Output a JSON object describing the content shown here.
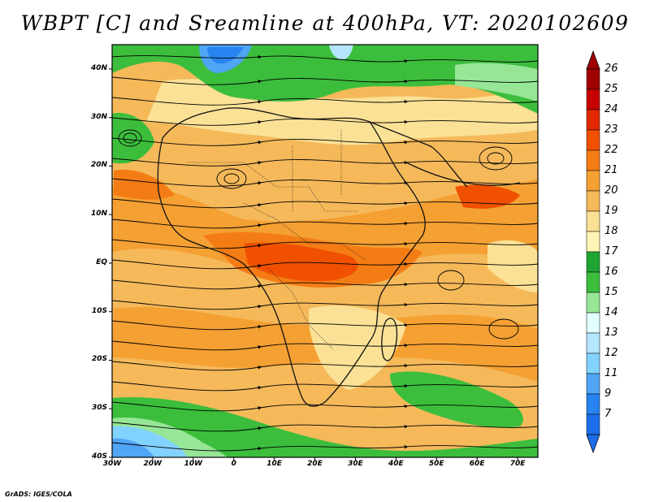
{
  "title": "WBPT [C] and Sreamline at 400hPa, VT: 2020102609",
  "credit": "GrADS: IGES/COLA",
  "map": {
    "lon_range": [
      -30,
      75
    ],
    "lat_range": [
      -40,
      45
    ],
    "lat_ticks": [
      {
        "value": 40,
        "label": "40N"
      },
      {
        "value": 30,
        "label": "30N"
      },
      {
        "value": 20,
        "label": "20N"
      },
      {
        "value": 10,
        "label": "10N"
      },
      {
        "value": 0,
        "label": "EQ"
      },
      {
        "value": -10,
        "label": "10S"
      },
      {
        "value": -20,
        "label": "20S"
      },
      {
        "value": -30,
        "label": "30S"
      },
      {
        "value": -40,
        "label": "40S"
      }
    ],
    "lon_ticks": [
      {
        "value": -30,
        "label": "30W"
      },
      {
        "value": -20,
        "label": "20W"
      },
      {
        "value": -10,
        "label": "10W"
      },
      {
        "value": 0,
        "label": "0"
      },
      {
        "value": 10,
        "label": "10E"
      },
      {
        "value": 20,
        "label": "20E"
      },
      {
        "value": 30,
        "label": "30E"
      },
      {
        "value": 40,
        "label": "40E"
      },
      {
        "value": 50,
        "label": "50E"
      },
      {
        "value": 60,
        "label": "60E"
      },
      {
        "value": 70,
        "label": "70E"
      }
    ]
  },
  "colorbar": {
    "labels": [
      "26",
      "25",
      "24",
      "23",
      "22",
      "21",
      "20",
      "19",
      "18",
      "17",
      "16",
      "15",
      "14",
      "13",
      "12",
      "11",
      "9",
      "7"
    ],
    "colors": [
      "#a00000",
      "#c80000",
      "#e12800",
      "#f05000",
      "#f47c14",
      "#f5a032",
      "#f5b95a",
      "#fbe195",
      "#fff5b4",
      "#1ea532",
      "#3cbe3c",
      "#96e696",
      "#e1ffff",
      "#b4e6ff",
      "#82d2ff",
      "#50a5f5",
      "#2882f0",
      "#1e6eeb"
    ]
  }
}
